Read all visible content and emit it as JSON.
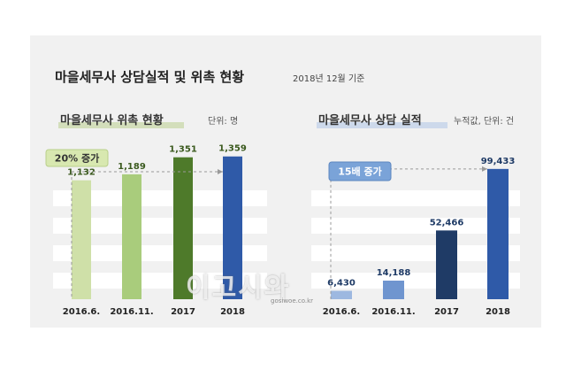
{
  "header": {
    "title": "마을세무사 상담실적 및 위촉 현황",
    "subtitle": "2018년 12월 기준"
  },
  "watermark": {
    "text": "이고시와",
    "url": "gosiwoe.co.kr"
  },
  "colors": {
    "card_bg": "#f1f1f1",
    "band": "#ffffff",
    "left_bars": [
      "#cfe0a8",
      "#a9cc7c",
      "#4e7a2a",
      "#2f5aa8"
    ],
    "right_bars": [
      "#9db8e0",
      "#6f95cf",
      "#1f3b66",
      "#2f5aa8"
    ],
    "left_tag_fill": "#d8e8b0",
    "right_tag_fill": "#7aa3d8",
    "left_value_color": "#3b5a1e",
    "right_value_color": "#1f3b66"
  },
  "chart_data": [
    {
      "type": "bar",
      "title": "마을세무사 위촉 현황",
      "unit": "단위: 명",
      "categories": [
        "2016.6.",
        "2016.11.",
        "2017",
        "2018"
      ],
      "values": [
        1132,
        1189,
        1351,
        1359
      ],
      "value_labels": [
        "1,132",
        "1,189",
        "1,351",
        "1,359"
      ],
      "annotation": "20% 증가",
      "ylim": [
        0,
        1500
      ]
    },
    {
      "type": "bar",
      "title": "마을세무사 상담 실적",
      "unit": "누적값, 단위: 건",
      "categories": [
        "2016.6.",
        "2016.11.",
        "2017",
        "2018"
      ],
      "values": [
        6430,
        14188,
        52466,
        99433
      ],
      "value_labels": [
        "6,430",
        "14,188",
        "52,466",
        "99,433"
      ],
      "annotation": "15배 증가",
      "ylim": [
        0,
        100000
      ]
    }
  ]
}
